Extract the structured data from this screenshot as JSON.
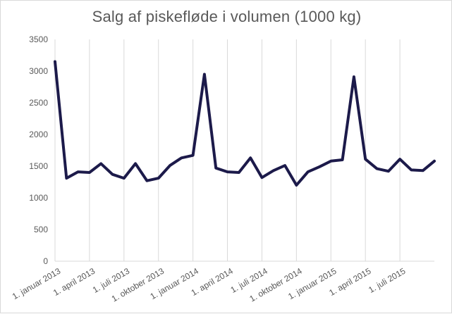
{
  "chart_data": {
    "type": "line",
    "title": "Salg af piskefløde i volumen (1000 kg)",
    "xlabel": "",
    "ylabel": "",
    "ylim": [
      0,
      3500
    ],
    "yticks": [
      0,
      500,
      1000,
      1500,
      2000,
      2500,
      3000,
      3500
    ],
    "x_tick_labels": [
      {
        "label": "1. januar 2013",
        "index": 0
      },
      {
        "label": "1. april 2013",
        "index": 3
      },
      {
        "label": "1. juli 2013",
        "index": 6
      },
      {
        "label": "1. oktober 2013",
        "index": 9
      },
      {
        "label": "1. januar 2014",
        "index": 12
      },
      {
        "label": "1. april 2014",
        "index": 15
      },
      {
        "label": "1. juli 2014",
        "index": 18
      },
      {
        "label": "1. oktober 2014",
        "index": 21
      },
      {
        "label": "1. januar 2015",
        "index": 24
      },
      {
        "label": "1. april 2015",
        "index": 27
      },
      {
        "label": "1. juli 2015",
        "index": 30
      }
    ],
    "grid": true,
    "line_color": "#1c1a4a",
    "series": [
      {
        "x": [
          "2013-01",
          "2013-02",
          "2013-03",
          "2013-04",
          "2013-05",
          "2013-06",
          "2013-07",
          "2013-08",
          "2013-09",
          "2013-10",
          "2013-11",
          "2013-12",
          "2014-01",
          "2014-02",
          "2014-03",
          "2014-04",
          "2014-05",
          "2014-06",
          "2014-07",
          "2014-08",
          "2014-09",
          "2014-10",
          "2014-11",
          "2014-12",
          "2015-01",
          "2015-02",
          "2015-03",
          "2015-04",
          "2015-05",
          "2015-06",
          "2015-07",
          "2015-08",
          "2015-09",
          "2015-10"
        ],
        "values": [
          3150,
          1310,
          1410,
          1400,
          1540,
          1370,
          1310,
          1540,
          1270,
          1310,
          1510,
          1630,
          1670,
          2950,
          1470,
          1410,
          1400,
          1630,
          1320,
          1430,
          1510,
          1200,
          1410,
          1490,
          1580,
          1600,
          2910,
          1610,
          1460,
          1420,
          1610,
          1440,
          1430,
          1580
        ]
      }
    ]
  }
}
